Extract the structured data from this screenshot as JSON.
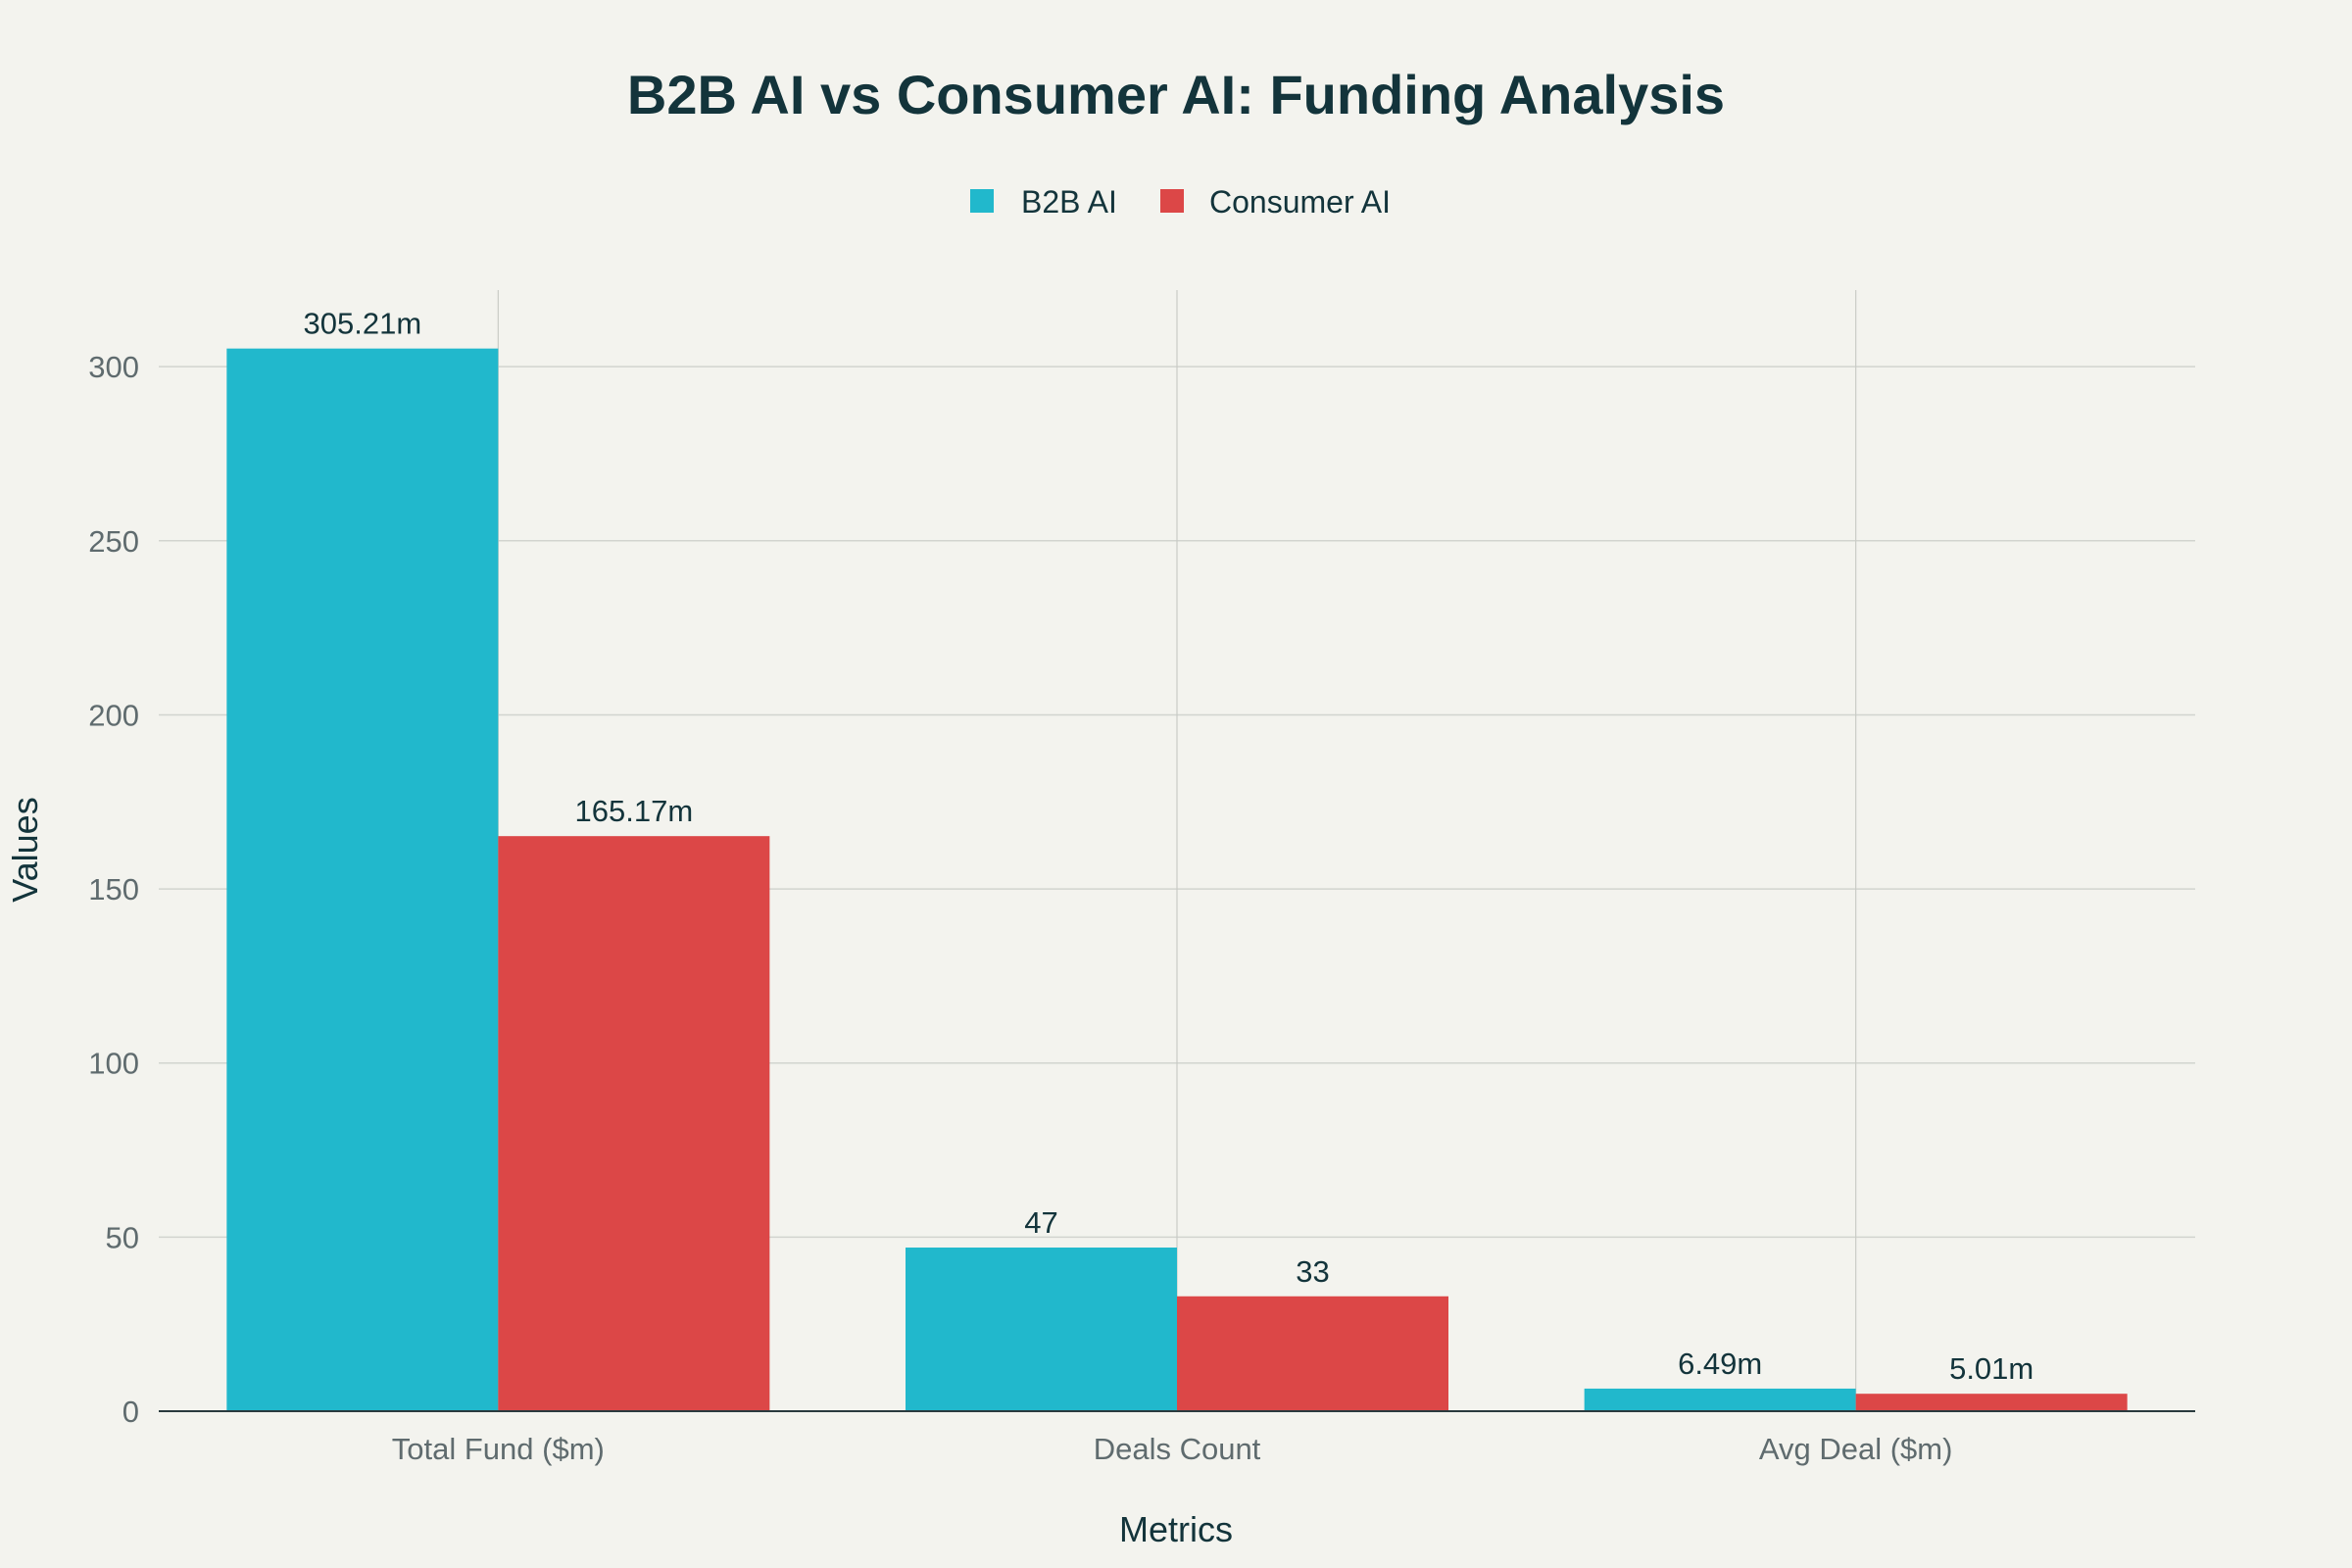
{
  "chart_data": {
    "type": "bar",
    "title": "B2B AI vs Consumer AI: Funding Analysis",
    "xlabel": "Metrics",
    "ylabel": "Values",
    "categories": [
      "Total Fund ($m)",
      "Deals Count",
      "Avg Deal ($m)"
    ],
    "series": [
      {
        "name": "B2B AI",
        "color": "#21b8cc",
        "values": [
          305.21,
          47,
          6.49
        ],
        "labels": [
          "305.21m",
          "47",
          "6.49m"
        ]
      },
      {
        "name": "Consumer AI",
        "color": "#dc4747",
        "values": [
          165.17,
          33,
          5.01
        ],
        "labels": [
          "165.17m",
          "33",
          "5.01m"
        ]
      }
    ],
    "ylim": [
      0,
      322
    ],
    "yticks": [
      0,
      50,
      100,
      150,
      200,
      250,
      300
    ],
    "grid": true,
    "legend": "top-center"
  }
}
